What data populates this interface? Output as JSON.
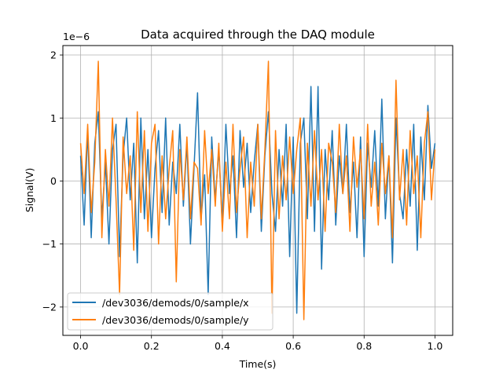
{
  "chart_data": {
    "type": "line",
    "title": "Data acquired through the DAQ module",
    "xlabel": "Time(s)",
    "ylabel": "Signal(V)",
    "offset_text": "1e−6",
    "xlim": [
      -0.05,
      1.05
    ],
    "ylim": [
      -2.45,
      2.15
    ],
    "xticks": [
      0.0,
      0.2,
      0.4,
      0.6,
      0.8,
      1.0
    ],
    "xtick_labels": [
      "0.0",
      "0.2",
      "0.4",
      "0.6",
      "0.8",
      "1.0"
    ],
    "yticks": [
      -2,
      -1,
      0,
      1,
      2
    ],
    "ytick_labels": [
      "−2",
      "−1",
      "0",
      "1",
      "2"
    ],
    "grid": true,
    "legend_position": "lower-left",
    "series": [
      {
        "name": "/dev3036/demods/0/sample/x",
        "color": "#1f77b4",
        "x": [
          0.0,
          0.01,
          0.02,
          0.03,
          0.04,
          0.05,
          0.06,
          0.07,
          0.08,
          0.09,
          0.1,
          0.11,
          0.12,
          0.13,
          0.14,
          0.15,
          0.16,
          0.17,
          0.18,
          0.19,
          0.2,
          0.21,
          0.22,
          0.23,
          0.24,
          0.25,
          0.26,
          0.27,
          0.28,
          0.29,
          0.3,
          0.31,
          0.32,
          0.33,
          0.34,
          0.35,
          0.36,
          0.37,
          0.38,
          0.39,
          0.4,
          0.41,
          0.42,
          0.43,
          0.44,
          0.45,
          0.46,
          0.47,
          0.48,
          0.49,
          0.5,
          0.51,
          0.52,
          0.53,
          0.54,
          0.55,
          0.56,
          0.57,
          0.58,
          0.59,
          0.6,
          0.61,
          0.62,
          0.63,
          0.64,
          0.65,
          0.66,
          0.67,
          0.68,
          0.69,
          0.7,
          0.71,
          0.72,
          0.73,
          0.74,
          0.75,
          0.76,
          0.77,
          0.78,
          0.79,
          0.8,
          0.81,
          0.82,
          0.83,
          0.84,
          0.85,
          0.86,
          0.87,
          0.88,
          0.89,
          0.9,
          0.91,
          0.92,
          0.93,
          0.94,
          0.95,
          0.96,
          0.97,
          0.98,
          0.99,
          1.0
        ],
        "y": [
          0.4,
          -0.7,
          0.8,
          -0.9,
          0.6,
          1.1,
          -0.6,
          0.3,
          -1.0,
          0.5,
          0.9,
          -1.2,
          0.4,
          1.0,
          -0.3,
          0.6,
          -1.3,
          1.0,
          -0.6,
          0.5,
          -0.9,
          0.2,
          0.8,
          -0.5,
          1.0,
          -0.7,
          0.3,
          -0.2,
          0.9,
          -0.4,
          0.6,
          -1.0,
          0.2,
          1.4,
          -0.6,
          0.1,
          -1.8,
          0.7,
          -0.3,
          0.5,
          -0.7,
          0.9,
          -0.2,
          0.4,
          -0.9,
          0.8,
          -0.1,
          0.6,
          -0.5,
          0.3,
          0.9,
          -0.8,
          0.4,
          1.1,
          -0.2,
          -0.8,
          0.5,
          -0.4,
          0.9,
          -1.2,
          0.7,
          -2.1,
          0.6,
          1.0,
          -0.6,
          1.5,
          -0.8,
          1.5,
          -1.4,
          0.5,
          -0.3,
          0.8,
          -0.7,
          0.4,
          -0.2,
          0.9,
          -0.5,
          0.3,
          -0.9,
          0.7,
          -1.2,
          0.6,
          -0.1,
          0.8,
          -0.4,
          1.3,
          -0.6,
          0.4,
          -1.3,
          1.0,
          -0.2,
          -0.6,
          0.5,
          -0.4,
          0.9,
          -1.1,
          0.7,
          -0.3,
          1.2,
          0.2,
          0.6
        ]
      },
      {
        "name": "/dev3036/demods/0/sample/y",
        "color": "#ff7f0e",
        "x": [
          0.0,
          0.01,
          0.02,
          0.03,
          0.04,
          0.05,
          0.06,
          0.07,
          0.08,
          0.09,
          0.1,
          0.11,
          0.12,
          0.13,
          0.14,
          0.15,
          0.16,
          0.17,
          0.18,
          0.19,
          0.2,
          0.21,
          0.22,
          0.23,
          0.24,
          0.25,
          0.26,
          0.27,
          0.28,
          0.29,
          0.3,
          0.31,
          0.32,
          0.33,
          0.34,
          0.35,
          0.36,
          0.37,
          0.38,
          0.39,
          0.4,
          0.41,
          0.42,
          0.43,
          0.44,
          0.45,
          0.46,
          0.47,
          0.48,
          0.49,
          0.5,
          0.51,
          0.52,
          0.53,
          0.54,
          0.55,
          0.56,
          0.57,
          0.58,
          0.59,
          0.6,
          0.61,
          0.62,
          0.63,
          0.64,
          0.65,
          0.66,
          0.67,
          0.68,
          0.69,
          0.7,
          0.71,
          0.72,
          0.73,
          0.74,
          0.75,
          0.76,
          0.77,
          0.78,
          0.79,
          0.8,
          0.81,
          0.82,
          0.83,
          0.84,
          0.85,
          0.86,
          0.87,
          0.88,
          0.89,
          0.9,
          0.91,
          0.92,
          0.93,
          0.94,
          0.95,
          0.96,
          0.97,
          0.98,
          0.99,
          1.0
        ],
        "y": [
          0.6,
          -0.2,
          0.9,
          -0.5,
          0.3,
          1.9,
          -0.9,
          0.5,
          -0.4,
          1.0,
          -0.3,
          -1.8,
          0.7,
          -0.2,
          0.4,
          -1.1,
          1.1,
          -0.5,
          0.8,
          -0.8,
          0.6,
          0.9,
          -1.0,
          0.4,
          -0.6,
          0.2,
          0.8,
          -1.6,
          0.5,
          -0.3,
          0.7,
          -0.6,
          0.3,
          0.2,
          -0.7,
          0.8,
          -0.2,
          0.5,
          -0.4,
          0.6,
          -0.8,
          0.3,
          -0.6,
          0.9,
          -0.5,
          0.2,
          0.7,
          -0.9,
          0.3,
          -0.4,
          0.9,
          -0.6,
          0.5,
          1.9,
          -2.1,
          0.8,
          -0.6,
          0.4,
          -0.3,
          0.7,
          -0.2,
          0.5,
          1.0,
          -2.2,
          0.6,
          -0.4,
          0.8,
          -0.3,
          0.5,
          -0.8,
          0.6,
          0.3,
          -0.5,
          0.9,
          -0.2,
          0.4,
          -0.8,
          0.7,
          -0.1,
          0.5,
          -0.6,
          0.9,
          -0.4,
          0.3,
          -0.7,
          0.6,
          -0.2,
          0.4,
          -0.9,
          1.6,
          -0.3,
          0.5,
          -0.7,
          0.8,
          -0.2,
          0.4,
          -0.9,
          0.6,
          1.1,
          -0.3,
          0.5
        ]
      }
    ]
  }
}
